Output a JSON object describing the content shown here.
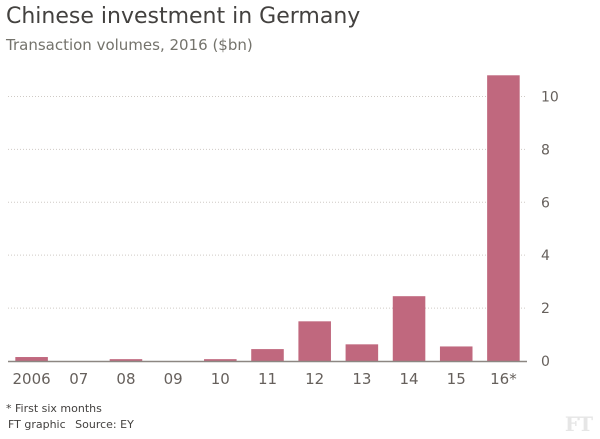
{
  "header": {
    "title": "Chinese investment in Germany",
    "subtitle": "Transaction volumes, 2016 ($bn)"
  },
  "footer": {
    "note": "* First six months",
    "credit": "FT graphic",
    "source": "Source: EY",
    "logo": "FT"
  },
  "colors": {
    "bar": "#c0687e",
    "grid": "#cfcac5",
    "axis": "#8c8782"
  },
  "chart_data": {
    "type": "bar",
    "title": "Chinese investment in Germany",
    "subtitle": "Transaction volumes, 2016 ($bn)",
    "categories": [
      "2006",
      "07",
      "08",
      "09",
      "10",
      "11",
      "12",
      "13",
      "14",
      "15",
      "16*"
    ],
    "values": [
      0.15,
      0.0,
      0.07,
      0.0,
      0.07,
      0.45,
      1.5,
      0.63,
      2.45,
      0.55,
      10.8
    ],
    "xlabel": "",
    "ylabel": "",
    "ylim": [
      0,
      11
    ],
    "yticks": [
      0,
      2,
      4,
      6,
      8,
      10
    ],
    "grid": true,
    "y_axis_side": "right"
  }
}
